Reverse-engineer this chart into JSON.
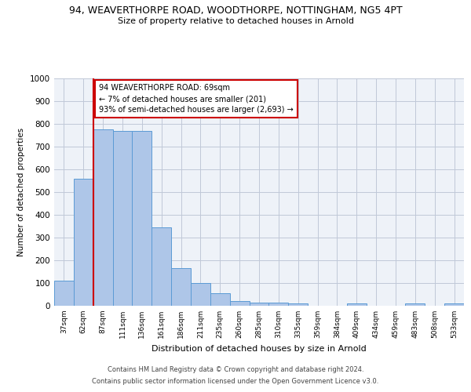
{
  "title_line1": "94, WEAVERTHORPE ROAD, WOODTHORPE, NOTTINGHAM, NG5 4PT",
  "title_line2": "Size of property relative to detached houses in Arnold",
  "xlabel": "Distribution of detached houses by size in Arnold",
  "ylabel": "Number of detached properties",
  "categories": [
    "37sqm",
    "62sqm",
    "87sqm",
    "111sqm",
    "136sqm",
    "161sqm",
    "186sqm",
    "211sqm",
    "235sqm",
    "260sqm",
    "285sqm",
    "310sqm",
    "335sqm",
    "359sqm",
    "384sqm",
    "409sqm",
    "434sqm",
    "459sqm",
    "483sqm",
    "508sqm",
    "533sqm"
  ],
  "values": [
    112,
    560,
    775,
    770,
    770,
    345,
    165,
    100,
    55,
    20,
    15,
    15,
    10,
    0,
    0,
    10,
    0,
    0,
    10,
    0,
    10
  ],
  "bar_color": "#aec6e8",
  "bar_edge_color": "#5b9bd5",
  "marker_color": "#cc0000",
  "annotation_text": "94 WEAVERTHORPE ROAD: 69sqm\n← 7% of detached houses are smaller (201)\n93% of semi-detached houses are larger (2,693) →",
  "annotation_box_color": "#cc0000",
  "footer_line1": "Contains HM Land Registry data © Crown copyright and database right 2024.",
  "footer_line2": "Contains public sector information licensed under the Open Government Licence v3.0.",
  "background_color": "#ffffff",
  "plot_bg_color": "#eef2f8",
  "grid_color": "#c0c8d8",
  "ylim": [
    0,
    1000
  ],
  "yticks": [
    0,
    100,
    200,
    300,
    400,
    500,
    600,
    700,
    800,
    900,
    1000
  ]
}
